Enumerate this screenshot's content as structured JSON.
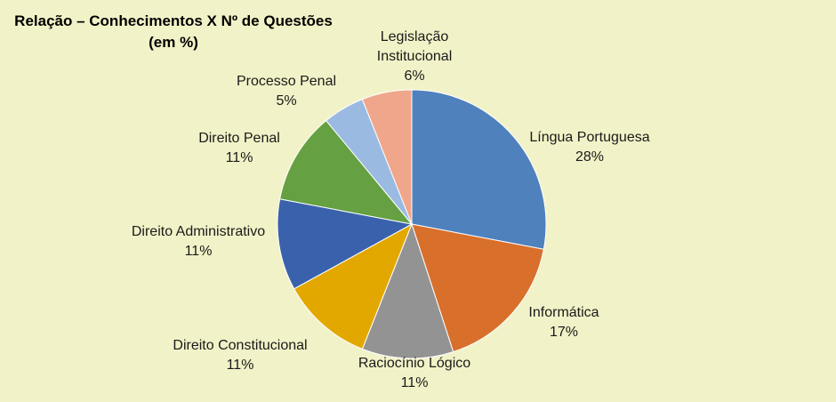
{
  "chart_data": {
    "type": "pie",
    "title_line1": "Relação – Conhecimentos X Nº de Questões",
    "title_line2": "(em %)",
    "slices": [
      {
        "label": "Língua Portuguesa",
        "value": 28,
        "value_label": "28%",
        "color": "#4f81bd"
      },
      {
        "label": "Informática",
        "value": 17,
        "value_label": "17%",
        "color": "#d86f2b"
      },
      {
        "label": "Raciocínio Lógico",
        "value": 11,
        "value_label": "11%",
        "color": "#939393"
      },
      {
        "label": "Direito Constitucional",
        "value": 11,
        "value_label": "11%",
        "color": "#e2a800"
      },
      {
        "label": "Direito Administrativo",
        "value": 11,
        "value_label": "11%",
        "color": "#3a62ac"
      },
      {
        "label": "Direito Penal",
        "value": 11,
        "value_label": "11%",
        "color": "#65a042"
      },
      {
        "label": "Processo Penal",
        "value": 5,
        "value_label": "5%",
        "color": "#9abae1"
      },
      {
        "label": "Legislação Institucional",
        "value": 6,
        "value_label": "6%",
        "color": "#efa68a"
      }
    ]
  }
}
